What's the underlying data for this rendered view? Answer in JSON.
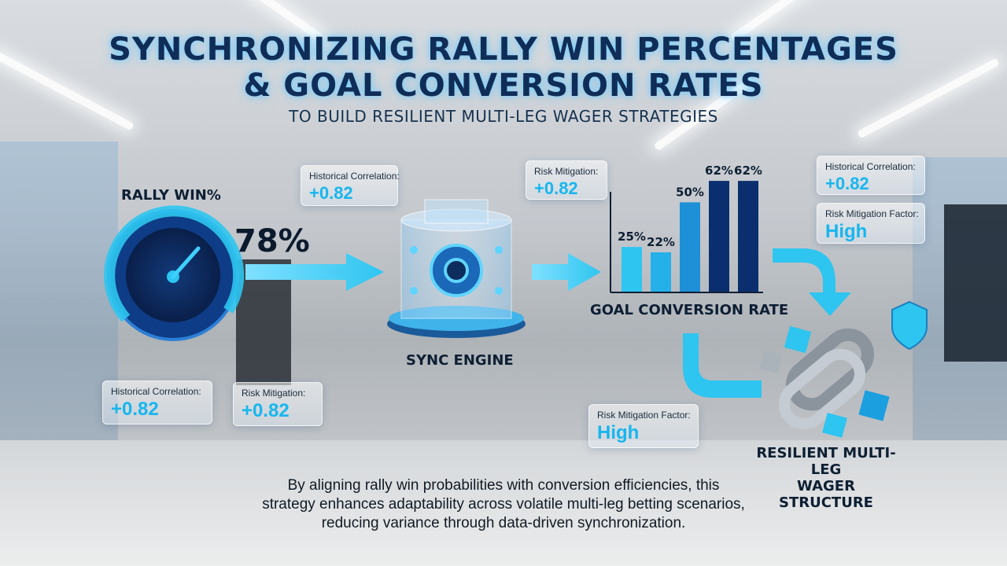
{
  "header": {
    "title_line1": "SYNCHRONIZING RALLY WIN PERCENTAGES",
    "title_line2": "& GOAL CONVERSION RATES",
    "subtitle": "TO BUILD RESILIENT MULTI-LEG WAGER STRATEGIES"
  },
  "gauge": {
    "label": "RALLY WIN%",
    "value_label": "78%",
    "value": 78
  },
  "engine": {
    "label": "SYNC ENGINE"
  },
  "conversion": {
    "label": "GOAL CONVERSION RATE",
    "bar_labels": [
      "25%",
      "22%",
      "50%",
      "62%",
      "62%"
    ],
    "bar_values": [
      25,
      22,
      50,
      62,
      62
    ],
    "bar_colors": [
      "#2ec5f0",
      "#25b0ea",
      "#1e90d8",
      "#0b2f6e",
      "#0b2f6e"
    ]
  },
  "result": {
    "label_line1": "RESILIENT MULTI-LEG",
    "label_line2": "WAGER STRUCTURE"
  },
  "cards": {
    "top_left": {
      "key": "Historical Correlation:",
      "value": "+0.82"
    },
    "top_center": {
      "key": "Risk Mitigation:",
      "value": "+0.82"
    },
    "top_right_corr": {
      "key": "Historical Correlation:",
      "value": "+0.82"
    },
    "top_right_risk": {
      "key": "Risk Mitigation Factor:",
      "value": "High"
    },
    "bottom_left_corr": {
      "key": "Historical Correlation:",
      "value": "+0.82"
    },
    "bottom_left_risk": {
      "key": "Risk Mitigation:",
      "value": "+0.82"
    },
    "bottom_center_risk": {
      "key": "Risk Mitigation Factor:",
      "value": "High"
    }
  },
  "description": {
    "line1": "By aligning rally win probabilities with conversion efficiencies, this",
    "line2": "strategy enhances adaptability across volatile multi-leg betting scenarios,",
    "line3": "reducing variance through data-driven synchronization."
  },
  "colors": {
    "accent": "#2ec5f0",
    "navy": "#0b2f6e",
    "title": "#0f2d57"
  }
}
